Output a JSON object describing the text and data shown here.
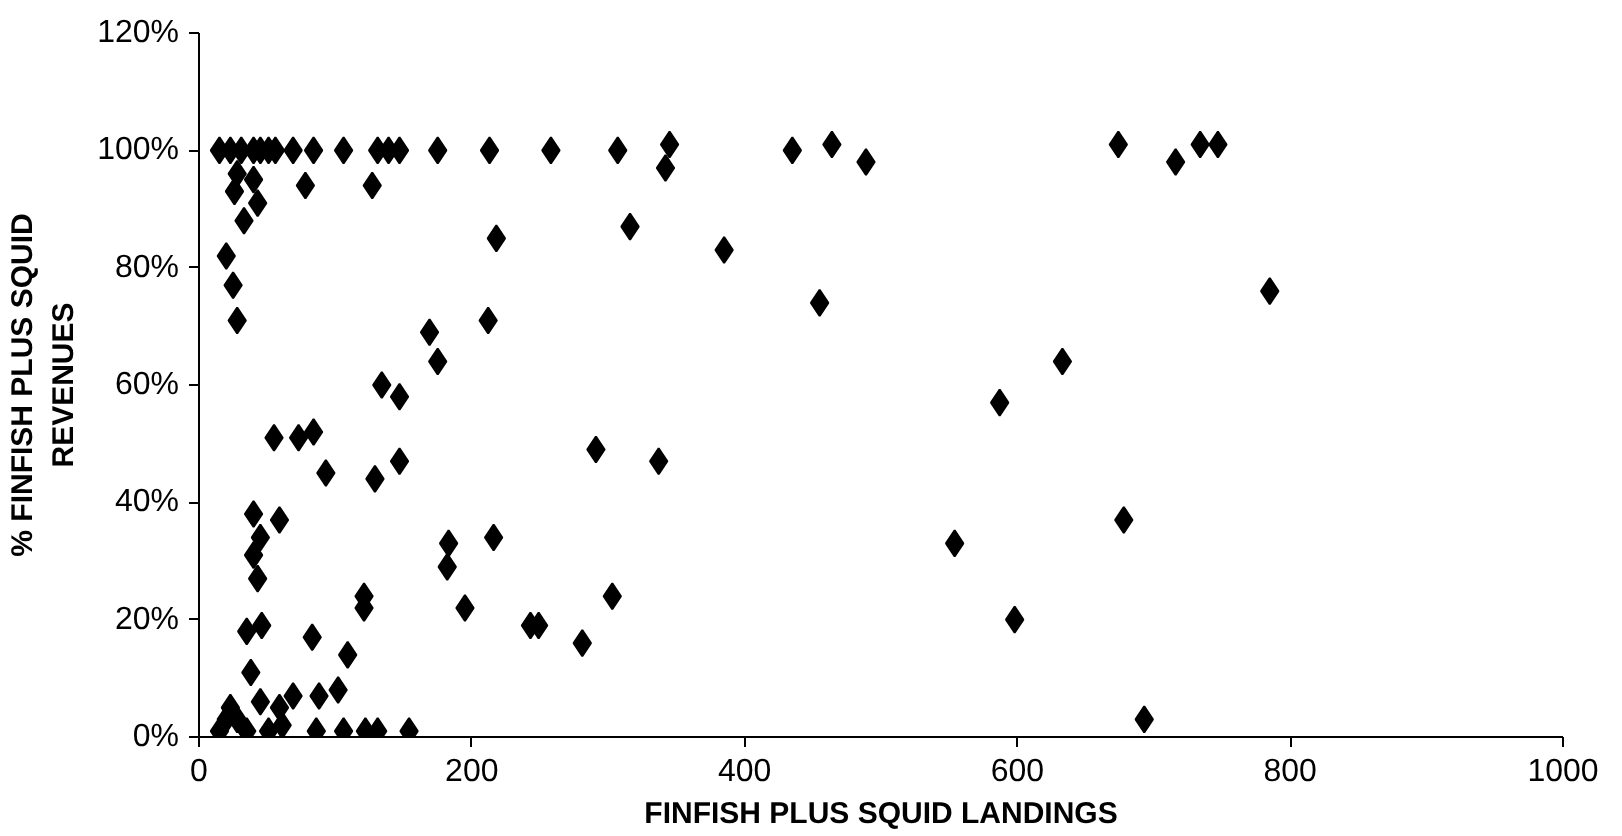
{
  "chart_data": {
    "type": "scatter",
    "xlabel": "FINFISH PLUS SQUID LANDINGS",
    "ylabel": "% FINFISH PLUS SQUID\nREVENUES",
    "xlim": [
      0,
      1000
    ],
    "xticks": [
      0,
      200,
      400,
      600,
      800,
      1000
    ],
    "ylim": [
      0,
      120
    ],
    "yticks": [
      {
        "value": 0,
        "label": "0%"
      },
      {
        "value": 20,
        "label": "20%"
      },
      {
        "value": 40,
        "label": "40%"
      },
      {
        "value": 60,
        "label": "60%"
      },
      {
        "value": 80,
        "label": "80%"
      },
      {
        "value": 100,
        "label": "100%"
      },
      {
        "value": 120,
        "label": "120%"
      }
    ],
    "grid": false,
    "marker": "diamond",
    "series": [
      {
        "color": "#000000",
        "x": [
          15,
          23,
          31,
          40,
          45,
          51,
          56,
          69,
          84,
          106,
          131,
          139,
          147,
          175,
          213,
          258,
          307,
          345,
          342,
          435,
          464,
          489,
          674,
          716,
          734,
          747,
          28,
          40,
          78,
          127,
          26,
          43,
          33,
          218,
          316,
          20,
          25,
          28,
          169,
          212,
          175,
          134,
          147,
          291,
          385,
          455,
          633,
          587,
          337,
          554,
          598,
          785,
          678,
          693,
          55,
          73,
          84,
          93,
          129,
          147,
          40,
          59,
          45,
          40,
          43,
          183,
          216,
          182,
          121,
          121,
          195,
          303,
          243,
          249,
          281,
          35,
          46,
          83,
          109,
          38,
          69,
          88,
          102,
          23,
          45,
          20,
          35,
          51,
          61,
          86,
          106,
          122,
          131,
          154,
          15,
          28,
          59
        ],
        "values": [
          100,
          100,
          100,
          100,
          100,
          100,
          100,
          100,
          100,
          100,
          100,
          100,
          100,
          100,
          100,
          100,
          100,
          101,
          97,
          100,
          101,
          98,
          101,
          98,
          101,
          101,
          96,
          95,
          94,
          94,
          93,
          91,
          88,
          85,
          87,
          82,
          77,
          71,
          69,
          71,
          64,
          60,
          58,
          49,
          83,
          74,
          64,
          57,
          47,
          33,
          20,
          76,
          37,
          3,
          51,
          51,
          52,
          45,
          44,
          47,
          38,
          37,
          34,
          31,
          27,
          33,
          34,
          29,
          24,
          22,
          22,
          24,
          19,
          19,
          16,
          18,
          19,
          17,
          14,
          11,
          7,
          7,
          8,
          5,
          6,
          3,
          1,
          1,
          2,
          1,
          1,
          1,
          1,
          1,
          1,
          3,
          5
        ]
      }
    ]
  }
}
